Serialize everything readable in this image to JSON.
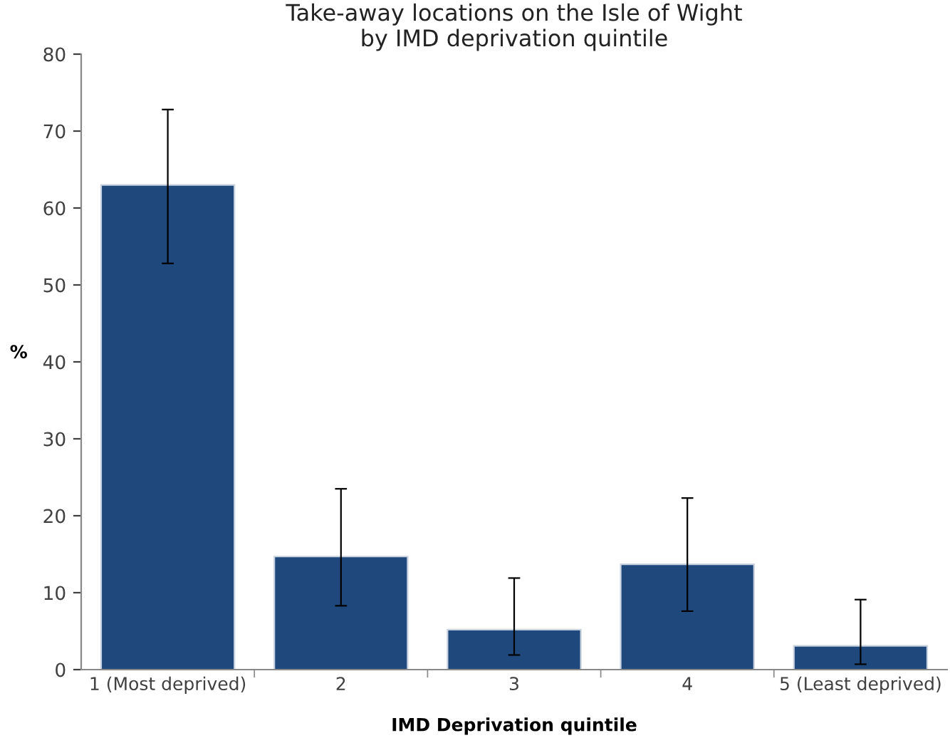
{
  "chart_data": {
    "type": "bar",
    "title": "Take-away locations on the Isle of Wight\nby IMD deprivation quintile",
    "xlabel": "IMD Deprivation quintile",
    "ylabel": "%",
    "categories": [
      "1 (Most deprived)",
      "2",
      "3",
      "4",
      "5 (Least deprived)"
    ],
    "values": [
      63.0,
      14.7,
      5.2,
      13.7,
      3.1
    ],
    "color": "#1f497d",
    "errors": [
      [
        52.8,
        72.8
      ],
      [
        8.3,
        23.5
      ],
      [
        1.9,
        11.9
      ],
      [
        7.6,
        22.3
      ],
      [
        0.7,
        9.1
      ]
    ],
    "ylim": [
      0,
      80
    ],
    "yticks": [
      0,
      10,
      20,
      30,
      40,
      50,
      60,
      70,
      80
    ],
    "grid": false,
    "legend": false
  }
}
